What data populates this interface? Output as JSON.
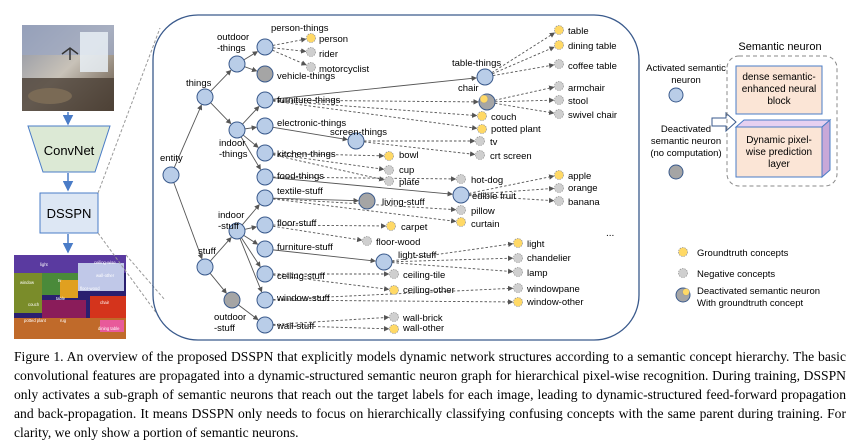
{
  "pipeline": {
    "convnet_label": "ConvNet",
    "dsspn_label": "DSSPN"
  },
  "hierarchy": {
    "root": "entity",
    "nodes": {
      "things": "things",
      "outdoor_things": "outdoor\n-things",
      "indoor_things": "indoor\n-things",
      "stuff": "stuff",
      "indoor_stuff": "indoor\n-stuff",
      "outdoor_stuff": "outdoor\n-stuff",
      "person_things": "person-things",
      "vehicle_things": "vehicle-things",
      "furniture_things": "furniture-things",
      "electronic_things": "electronic-things",
      "kitchen_things": "kitchen-things",
      "food_things": "food-things",
      "screen_things": "screen-things",
      "table_things": "table-things",
      "chair": "chair",
      "edible_fruit": "edible fruit",
      "textile_stuff": "textile-stuff",
      "living_stuff": "living-stuff",
      "floor_stuff": "floor-stuff",
      "furniture_stuff": "furniture-stuff",
      "light_stuff": "light-stuff",
      "ceiling_stuff": "ceiling-stuff",
      "window_stuff": "window-stuff",
      "wall_stuff": "wall-stuff"
    },
    "leaves": {
      "person": "person",
      "rider": "rider",
      "motorcyclist": "motorcyclist",
      "table": "table",
      "dining_table": "dining table",
      "coffee_table": "coffee table",
      "armchair": "armchair",
      "stool": "stool",
      "swivel_chair": "swivel chair",
      "couch": "couch",
      "potted_plant": "potted plant",
      "tv": "tv",
      "crt_screen": "crt screen",
      "bowl": "bowl",
      "cup": "cup",
      "plate": "plate",
      "hot_dog": "hot-dog",
      "apple": "apple",
      "orange": "orange",
      "banana": "banana",
      "pillow": "pillow",
      "curtain": "curtain",
      "carpet": "carpet",
      "floor_wood": "floor-wood",
      "light": "light",
      "chandelier": "chandelier",
      "lamp": "lamp",
      "ceiling_tile": "ceiling-tile",
      "ceiling_other": "ceiling-other",
      "windowpane": "windowpane",
      "window_other": "window-other",
      "wall_brick": "wall-brick",
      "wall_other": "wall-other",
      "ellipsis": "..."
    }
  },
  "legend": {
    "activated": "Activated semantic\nneuron",
    "deactivated": "Deactivated\nsemantic neuron\n(no computation)",
    "groundtruth": "Groundtruth concepts",
    "negative": "Negative concepts",
    "deactivated_gt": "Deactivated semantic neuron\nWith groundtruth concept"
  },
  "semantic_neuron": {
    "title": "Semantic neuron",
    "block1": "dense semantic-\nenhanced neural\nblock",
    "block2": "Dynamic pixel-\nwise prediction\nlayer"
  },
  "segmentation_labels": [
    "light",
    "ceiling-wise",
    "wall-other",
    "tv",
    "window",
    "floor-wood",
    "table",
    "couch",
    "chair",
    "potted plant",
    "rug",
    "dining table"
  ],
  "colors": {
    "activated_fill": "#b9cde8",
    "activated_stroke": "#3a5a8c",
    "deactivated_fill": "#a5a5a5",
    "groundtruth_fill": "#ffd966",
    "negative_fill": "#cfcfcf",
    "arrow_blue": "#4a7cc7",
    "block_pink": "#fbe5d6",
    "convnet_fill": "#dce9d5"
  },
  "caption": {
    "text": "Figure 1. An overview of the proposed DSSPN that explicitly models dynamic network structures according to a semantic concept hierarchy. The basic convolutional features are propagated into a dynamic-structured semantic neuron graph for hierarchical pixel-wise recognition. During training, DSSPN only activates a sub-graph of semantic neurons that reach out the target labels for each image, leading to dynamic-structured feed-forward propagation and back-propagation. It means DSSPN only needs to focus on hierarchically classifying confusing concepts with the same parent during training. For clarity, we only show a portion of semantic neurons."
  }
}
